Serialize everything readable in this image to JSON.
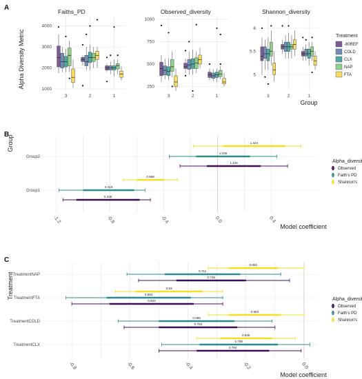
{
  "colors": {
    "treatment": {
      "-80REF": "#7b5b95",
      "COLD": "#6f8fb5",
      "CLX": "#4fa9a6",
      "NAP": "#8fd08a",
      "FTA": "#f4dc62"
    },
    "alpha": {
      "Observed": "#3d0c54",
      "Faith's PD": "#2a8c8a",
      "Shannon's": "#f3de24"
    }
  },
  "chart_data": [
    {
      "type": "box",
      "panel_letter": "A",
      "ylabel": "Alpha Diversity Metric",
      "xlabel": "Group",
      "groups": [
        "3",
        "2",
        "1"
      ],
      "legend": {
        "title": "Treatment",
        "entries": [
          "-80REF",
          "COLD",
          "CLX",
          "NAP",
          "FTA"
        ],
        "placement": "right"
      },
      "facets": [
        {
          "title": "Faiths_PD",
          "ylim": [
            900,
            4450
          ],
          "yticks": [
            1000,
            2000,
            3000,
            4000
          ],
          "boxes": {
            "3": [
              [
                1750,
                2050,
                2500,
                3050,
                3600
              ],
              [
                1800,
                2000,
                2300,
                2700,
                3000
              ],
              [
                1800,
                2050,
                2300,
                2550,
                2900
              ],
              [
                1800,
                2100,
                2600,
                2950,
                3300
              ],
              [
                1050,
                1300,
                1550,
                1950,
                2400
              ]
            ],
            "2": [
              [
                2100,
                2300,
                2400,
                2500,
                2600
              ],
              [
                1900,
                2100,
                2300,
                2600,
                3000
              ],
              [
                1900,
                2250,
                2500,
                2750,
                3100
              ],
              [
                2000,
                2300,
                2500,
                2700,
                3000
              ],
              [
                2000,
                2400,
                2600,
                2800,
                3000
              ]
            ],
            "1": [
              [
                1800,
                1900,
                2000,
                2100,
                2200
              ],
              [
                1700,
                1900,
                2000,
                2100,
                2300
              ],
              [
                1600,
                1900,
                2000,
                2100,
                2400
              ],
              [
                1700,
                1950,
                2100,
                2200,
                2400
              ],
              [
                1400,
                1550,
                1700,
                1850,
                2100
              ]
            ]
          },
          "outliers": [
            [
              3,
              1,
              3950
            ],
            [
              3,
              3,
              3500
            ],
            [
              3,
              4,
              1500
            ],
            [
              2,
              1,
              3100
            ],
            [
              2,
              1,
              1150
            ],
            [
              2,
              2,
              3600
            ],
            [
              2,
              3,
              4000
            ],
            [
              2,
              5,
              4300
            ],
            [
              1,
              1,
              2500
            ],
            [
              1,
              1,
              1350
            ],
            [
              1,
              2,
              2600
            ],
            [
              1,
              3,
              3950
            ],
            [
              1,
              4,
              2600
            ]
          ]
        },
        {
          "title": "Observed_diversity",
          "ylim": [
            200,
            1030
          ],
          "yticks": [
            250,
            500,
            750,
            1000
          ],
          "boxes": {
            "3": [
              [
                300,
                370,
                450,
                520,
                600
              ],
              [
                330,
                380,
                430,
                480,
                560
              ],
              [
                320,
                370,
                420,
                470,
                560
              ],
              [
                350,
                420,
                470,
                550,
                640
              ],
              [
                200,
                250,
                300,
                370,
                450
              ]
            ],
            "2": [
              [
                400,
                450,
                470,
                510,
                560
              ],
              [
                380,
                440,
                490,
                550,
                640
              ],
              [
                380,
                450,
                500,
                560,
                660
              ],
              [
                400,
                450,
                510,
                570,
                640
              ],
              [
                450,
                500,
                550,
                600,
                680
              ]
            ],
            "1": [
              [
                320,
                350,
                380,
                410,
                450
              ],
              [
                310,
                340,
                370,
                400,
                440
              ],
              [
                300,
                350,
                380,
                410,
                450
              ],
              [
                330,
                360,
                390,
                430,
                480
              ],
              [
                250,
                280,
                300,
                340,
                400
              ]
            ]
          },
          "outliers": [
            [
              3,
              1,
              930
            ],
            [
              3,
              3,
              850
            ],
            [
              3,
              4,
              250
            ],
            [
              2,
              1,
              650
            ],
            [
              2,
              1,
              370
            ],
            [
              2,
              2,
              750
            ],
            [
              2,
              3,
              200
            ],
            [
              2,
              4,
              940
            ],
            [
              1,
              1,
              500
            ],
            [
              1,
              3,
              900
            ],
            [
              1,
              4,
              830
            ],
            [
              1,
              4,
              500
            ]
          ]
        },
        {
          "title": "Shannon_diversity",
          "ylim": [
            4.65,
            6.25
          ],
          "yticks": [
            5.0,
            5.5,
            6.0
          ],
          "boxes": {
            "3": [
              [
                5.0,
                5.3,
                5.4,
                5.6,
                5.8
              ],
              [
                5.1,
                5.35,
                5.45,
                5.6,
                5.75
              ],
              [
                5.1,
                5.3,
                5.45,
                5.55,
                5.8
              ],
              [
                5.2,
                5.4,
                5.5,
                5.7,
                5.95
              ],
              [
                4.85,
                5.0,
                5.1,
                5.25,
                5.5
              ]
            ],
            "2": [
              [
                5.45,
                5.55,
                5.6,
                5.65,
                5.75
              ],
              [
                5.35,
                5.5,
                5.6,
                5.7,
                5.85
              ],
              [
                5.35,
                5.5,
                5.6,
                5.7,
                5.9
              ],
              [
                5.35,
                5.55,
                5.6,
                5.65,
                5.85
              ],
              [
                5.4,
                5.55,
                5.65,
                5.75,
                5.95
              ]
            ],
            "1": [
              [
                5.3,
                5.4,
                5.45,
                5.5,
                5.6
              ],
              [
                5.3,
                5.4,
                5.45,
                5.55,
                5.65
              ],
              [
                5.2,
                5.35,
                5.45,
                5.55,
                5.7
              ],
              [
                5.3,
                5.4,
                5.5,
                5.6,
                5.7
              ],
              [
                5.1,
                5.2,
                5.3,
                5.4,
                5.5
              ]
            ]
          },
          "outliers": [
            [
              3,
              1,
              6.0
            ],
            [
              3,
              2,
              4.95
            ],
            [
              3,
              3,
              4.8
            ],
            [
              3,
              4,
              6.05
            ],
            [
              2,
              1,
              6.05
            ],
            [
              2,
              3,
              6.05
            ],
            [
              1,
              1,
              5.8
            ],
            [
              1,
              2,
              5.75
            ],
            [
              1,
              4,
              5.8
            ],
            [
              1,
              4,
              5.05
            ]
          ]
        }
      ]
    },
    {
      "type": "interval",
      "panel_letter": "B",
      "ylabel": "Group",
      "xlabel": "Model coefficient",
      "categories": [
        "Group2",
        "Group1"
      ],
      "xlim": [
        -1.3,
        0.75
      ],
      "xticks": [
        -1.2,
        -0.8,
        -0.4,
        0.0,
        0.4
      ],
      "xticklabels": [
        "-1.2",
        "-0.8",
        "-0.4",
        "0.0",
        "0.4"
      ],
      "legend": {
        "title": "Alpha_diversity",
        "entries": [
          "Observed",
          "Faith's PD",
          "Shannon's"
        ],
        "placement": "right"
      },
      "series": [
        {
          "name": "Observed",
          "intervals": [
            {
              "category": "Group2",
              "label": "1.125",
              "thick": [
                -0.08,
                0.32
              ],
              "thin": [
                -0.28,
                0.52
              ]
            },
            {
              "category": "Group1",
              "label": "0.436",
              "thick": [
                -1.05,
                -0.58
              ],
              "thin": [
                -1.15,
                -0.5
              ]
            }
          ]
        },
        {
          "name": "Faith's PD",
          "intervals": [
            {
              "category": "Group2",
              "label": "1.039",
              "thick": [
                -0.16,
                0.24
              ],
              "thin": [
                -0.36,
                0.44
              ]
            },
            {
              "category": "Group1",
              "label": "0.419",
              "thick": [
                -1.0,
                -0.62
              ],
              "thin": [
                -1.18,
                -0.54
              ]
            }
          ]
        },
        {
          "name": "Shannon's",
          "intervals": [
            {
              "category": "Group2",
              "label": "1.424",
              "thick": [
                0.04,
                0.5
              ],
              "thin": [
                -0.18,
                0.62
              ]
            },
            {
              "category": "Group1",
              "label": "0.598",
              "thick": [
                -0.6,
                -0.4
              ],
              "thin": [
                -0.7,
                -0.3
              ]
            }
          ]
        }
      ]
    },
    {
      "type": "interval",
      "panel_letter": "C",
      "ylabel": "Treatment",
      "xlabel": "Model coefficient",
      "categories": [
        "TreatmentNAP",
        "TreatmentFTA",
        "TreatmentCOLD",
        "TreatmentCLX"
      ],
      "xlim": [
        -0.9,
        0.05
      ],
      "xticks": [
        -0.8,
        -0.6,
        -0.4,
        -0.2,
        0.0
      ],
      "xticklabels": [
        "-0.8",
        "-0.6",
        "-0.4",
        "-0.2",
        "0.0"
      ],
      "legend": {
        "title": "Alpha_diversity",
        "entries": [
          "Observed",
          "Faith's PD",
          "Shannon's"
        ],
        "placement": "right"
      },
      "series": [
        {
          "name": "Observed",
          "intervals": [
            {
              "category": "TreatmentNAP",
              "label": "0.736",
              "thick": [
                -0.44,
                -0.2
              ],
              "thin": [
                -0.57,
                -0.05
              ]
            },
            {
              "category": "TreatmentFTA",
              "label": "0.592",
              "thick": [
                -0.67,
                -0.38
              ],
              "thin": [
                -0.8,
                -0.28
              ]
            },
            {
              "category": "TreatmentCOLD",
              "label": "0.703",
              "thick": [
                -0.5,
                -0.23
              ],
              "thin": [
                -0.62,
                -0.1
              ]
            },
            {
              "category": "TreatmentCLX",
              "label": "0.784",
              "thick": [
                -0.37,
                -0.12
              ],
              "thin": [
                -0.5,
                -0.01
              ]
            }
          ]
        },
        {
          "name": "Faith's PD",
          "intervals": [
            {
              "category": "TreatmentNAP",
              "label": "0.711",
              "thick": [
                -0.48,
                -0.22
              ],
              "thin": [
                -0.61,
                -0.08
              ]
            },
            {
              "category": "TreatmentFTA",
              "label": "0.583",
              "thick": [
                -0.68,
                -0.39
              ],
              "thin": [
                -0.82,
                -0.28
              ]
            },
            {
              "category": "TreatmentCOLD",
              "label": "0.696",
              "thick": [
                -0.5,
                -0.24
              ],
              "thin": [
                -0.64,
                -0.11
              ]
            },
            {
              "category": "TreatmentCLX",
              "label": "0.798",
              "thick": [
                -0.36,
                -0.09
              ],
              "thin": [
                -0.49,
                0.02
              ]
            }
          ]
        },
        {
          "name": "Shannon's",
          "intervals": [
            {
              "category": "TreatmentNAP",
              "label": "0.852",
              "thick": [
                -0.26,
                -0.09
              ],
              "thin": [
                -0.33,
                0.0
              ]
            },
            {
              "category": "TreatmentFTA",
              "label": "0.63",
              "thick": [
                -0.58,
                -0.35
              ],
              "thin": [
                -0.65,
                -0.28
              ]
            },
            {
              "category": "TreatmentCOLD",
              "label": "0.853",
              "thick": [
                -0.26,
                -0.08
              ],
              "thin": [
                -0.33,
                0.0
              ]
            },
            {
              "category": "TreatmentCLX",
              "label": "0.845",
              "thick": [
                -0.29,
                -0.11
              ],
              "thin": [
                -0.37,
                -0.03
              ]
            }
          ]
        }
      ]
    }
  ]
}
